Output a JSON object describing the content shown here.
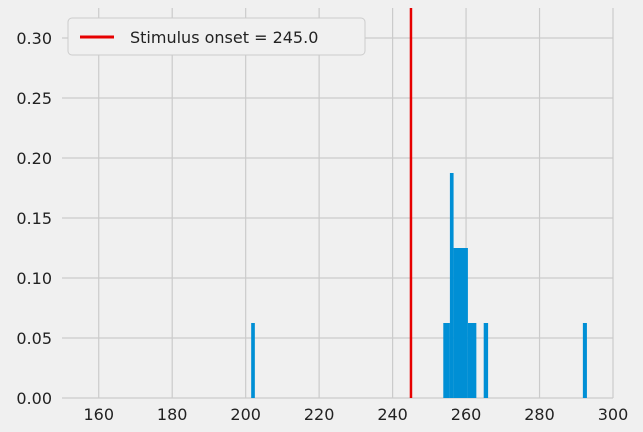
{
  "chart_data": {
    "type": "bar",
    "style": "histogram",
    "title": "",
    "xlabel": "",
    "ylabel": "",
    "xlim": [
      150,
      300
    ],
    "ylim": [
      0,
      0.325
    ],
    "grid": true,
    "x_ticks": [
      160,
      180,
      200,
      220,
      240,
      260,
      280,
      300
    ],
    "x_tick_labels": [
      "160",
      "180",
      "200",
      "220",
      "240",
      "260",
      "280",
      "300"
    ],
    "y_ticks": [
      0.0,
      0.05,
      0.1,
      0.15,
      0.2,
      0.25,
      0.3
    ],
    "y_tick_labels": [
      "0.00",
      "0.05",
      "0.10",
      "0.15",
      "0.20",
      "0.25",
      "0.30"
    ],
    "bar_color": "#008fd5",
    "bars": [
      {
        "x0": 201.5,
        "x1": 202.5,
        "value": 0.0625
      },
      {
        "x0": 253.8,
        "x1": 255.6,
        "value": 0.0625
      },
      {
        "x0": 255.6,
        "x1": 256.6,
        "value": 0.1875
      },
      {
        "x0": 256.6,
        "x1": 260.5,
        "value": 0.125
      },
      {
        "x0": 260.5,
        "x1": 262.8,
        "value": 0.0625
      },
      {
        "x0": 264.8,
        "x1": 266.0,
        "value": 0.0625
      },
      {
        "x0": 291.8,
        "x1": 292.9,
        "value": 0.0625
      }
    ],
    "vline": {
      "x": 245.0,
      "color": "#e60000"
    },
    "legend": {
      "position": "top-left",
      "entries": [
        {
          "label": "Stimulus onset = 245.0",
          "color": "#e60000"
        }
      ]
    }
  }
}
